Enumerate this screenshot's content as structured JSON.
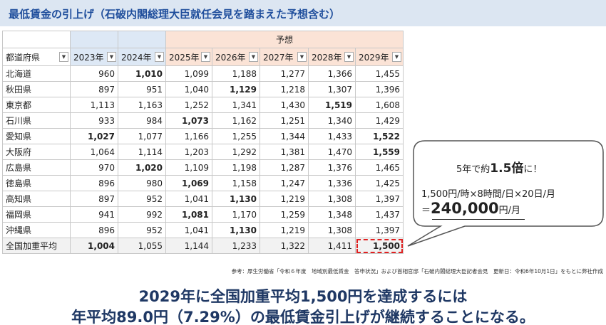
{
  "header": {
    "title": "最低賃金の引上げ（石破内閣総理大臣就任会見を踏まえた予想含む）"
  },
  "table": {
    "group_label": "予想",
    "columns": [
      "都道府県",
      "2023年",
      "2024年",
      "2025年",
      "2026年",
      "2027年",
      "2028年",
      "2029年"
    ],
    "rows": [
      {
        "name": "北海道",
        "values": [
          "960",
          "1,010",
          "1,099",
          "1,188",
          "1,277",
          "1,366",
          "1,455"
        ],
        "bold": [
          1
        ]
      },
      {
        "name": "秋田県",
        "values": [
          "897",
          "951",
          "1,040",
          "1,129",
          "1,218",
          "1,307",
          "1,396"
        ],
        "bold": [
          3
        ]
      },
      {
        "name": "東京都",
        "values": [
          "1,113",
          "1,163",
          "1,252",
          "1,341",
          "1,430",
          "1,519",
          "1,608"
        ],
        "bold": [
          5
        ]
      },
      {
        "name": "石川県",
        "values": [
          "933",
          "984",
          "1,073",
          "1,162",
          "1,251",
          "1,340",
          "1,429"
        ],
        "bold": [
          2
        ]
      },
      {
        "name": "愛知県",
        "values": [
          "1,027",
          "1,077",
          "1,166",
          "1,255",
          "1,344",
          "1,433",
          "1,522"
        ],
        "bold": [
          0,
          6
        ]
      },
      {
        "name": "大阪府",
        "values": [
          "1,064",
          "1,114",
          "1,203",
          "1,292",
          "1,381",
          "1,470",
          "1,559"
        ],
        "bold": [
          6
        ]
      },
      {
        "name": "広島県",
        "values": [
          "970",
          "1,020",
          "1,109",
          "1,198",
          "1,287",
          "1,376",
          "1,465"
        ],
        "bold": [
          1
        ]
      },
      {
        "name": "徳島県",
        "values": [
          "896",
          "980",
          "1,069",
          "1,158",
          "1,247",
          "1,336",
          "1,425"
        ],
        "bold": [
          2
        ]
      },
      {
        "name": "高知県",
        "values": [
          "897",
          "952",
          "1,041",
          "1,130",
          "1,219",
          "1,308",
          "1,397"
        ],
        "bold": [
          3
        ]
      },
      {
        "name": "福岡県",
        "values": [
          "941",
          "992",
          "1,081",
          "1,170",
          "1,259",
          "1,348",
          "1,437"
        ],
        "bold": [
          2
        ]
      },
      {
        "name": "沖縄県",
        "values": [
          "896",
          "952",
          "1,041",
          "1,130",
          "1,219",
          "1,308",
          "1,397"
        ],
        "bold": [
          3
        ]
      },
      {
        "name": "全国加重平均",
        "values": [
          "1,004",
          "1,055",
          "1,144",
          "1,233",
          "1,322",
          "1,411",
          "1,500"
        ],
        "bold": [
          0,
          6
        ],
        "highlight": [
          6
        ]
      }
    ]
  },
  "callout": {
    "line1": {
      "before": "5年で約",
      "emphasis": "1.5倍",
      "after": "に！"
    },
    "line2": "1,500円/時×8時間/日×20日/月",
    "line3": {
      "before": "＝",
      "emphasis": "240,000",
      "after": "円/月"
    }
  },
  "source": "参考：厚生労働省「令和６年度　地域別最低賃金　答申状況」および首相官邸「石破内閣総理大臣記者会見　更新日：令和6年10月1日」をもとに弊社作成",
  "conclusion": [
    "2029年に全国加重平均1,500円を達成するには",
    "年平均89.0円（7.29%）の最低賃金引上げが継続することになる。"
  ]
}
